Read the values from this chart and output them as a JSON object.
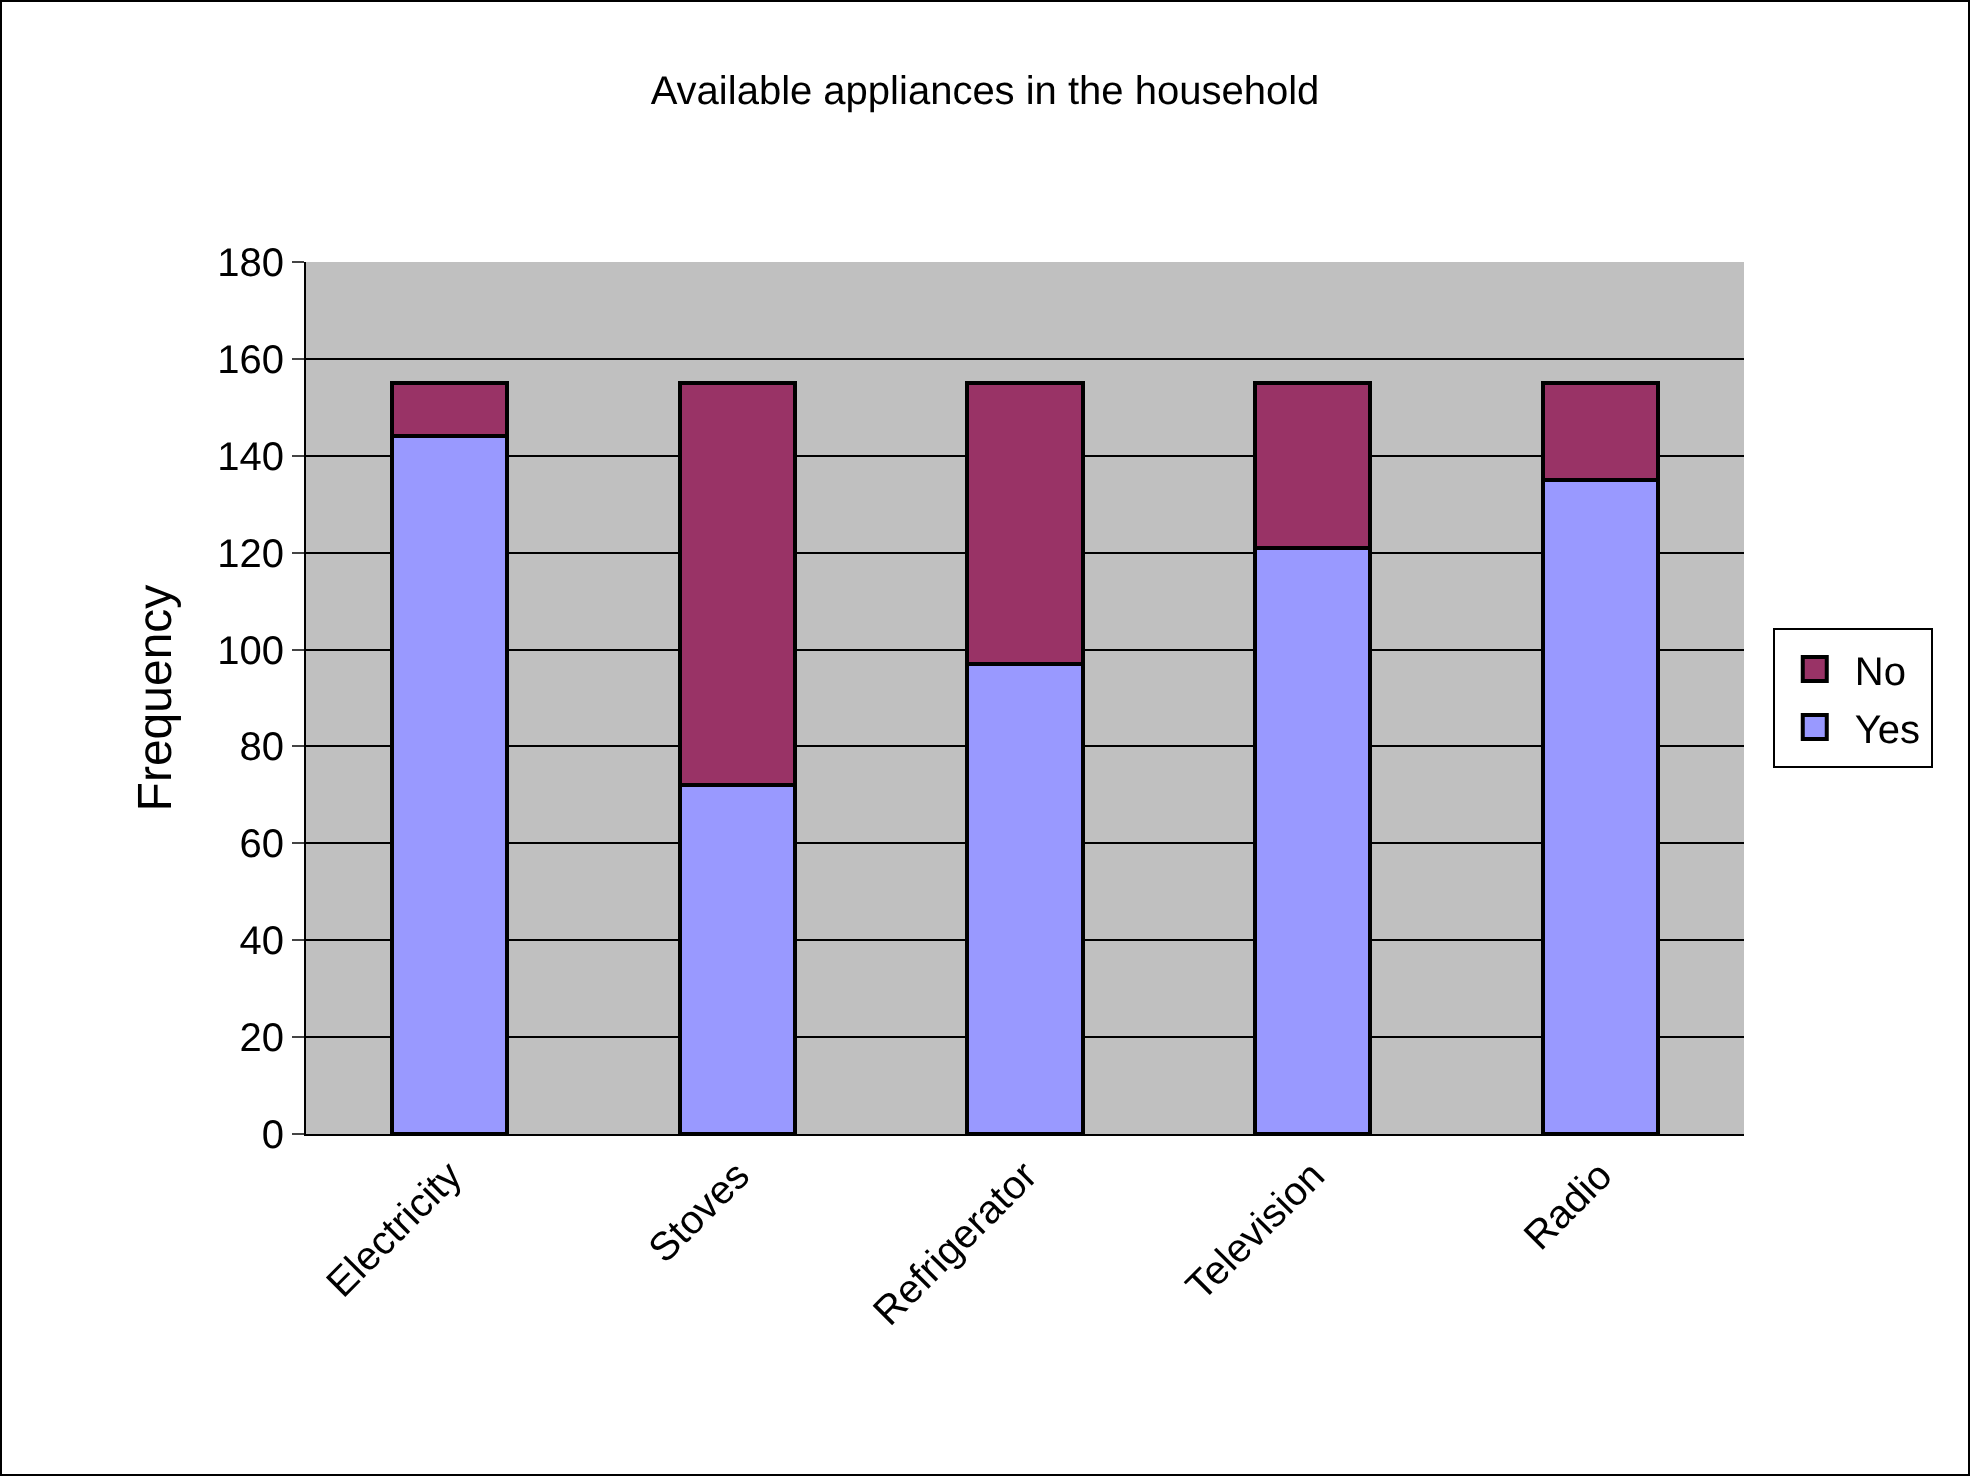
{
  "chart_data": {
    "type": "bar",
    "title": "Available appliances in the household",
    "ylabel": "Frequency",
    "categories": [
      "Electricity",
      "Stoves",
      "Refrigerator",
      "Television",
      "Radio"
    ],
    "series": [
      {
        "name": "Yes",
        "color": "#9999ff",
        "values": [
          144,
          72,
          97,
          121,
          135
        ]
      },
      {
        "name": "No",
        "color": "#993366",
        "values": [
          11,
          83,
          58,
          34,
          20
        ]
      }
    ],
    "stacked": true,
    "ylim": [
      0,
      180
    ],
    "yticks": [
      0,
      20,
      40,
      60,
      80,
      100,
      120,
      140,
      160,
      180
    ],
    "grid": "y",
    "legend": "right"
  }
}
